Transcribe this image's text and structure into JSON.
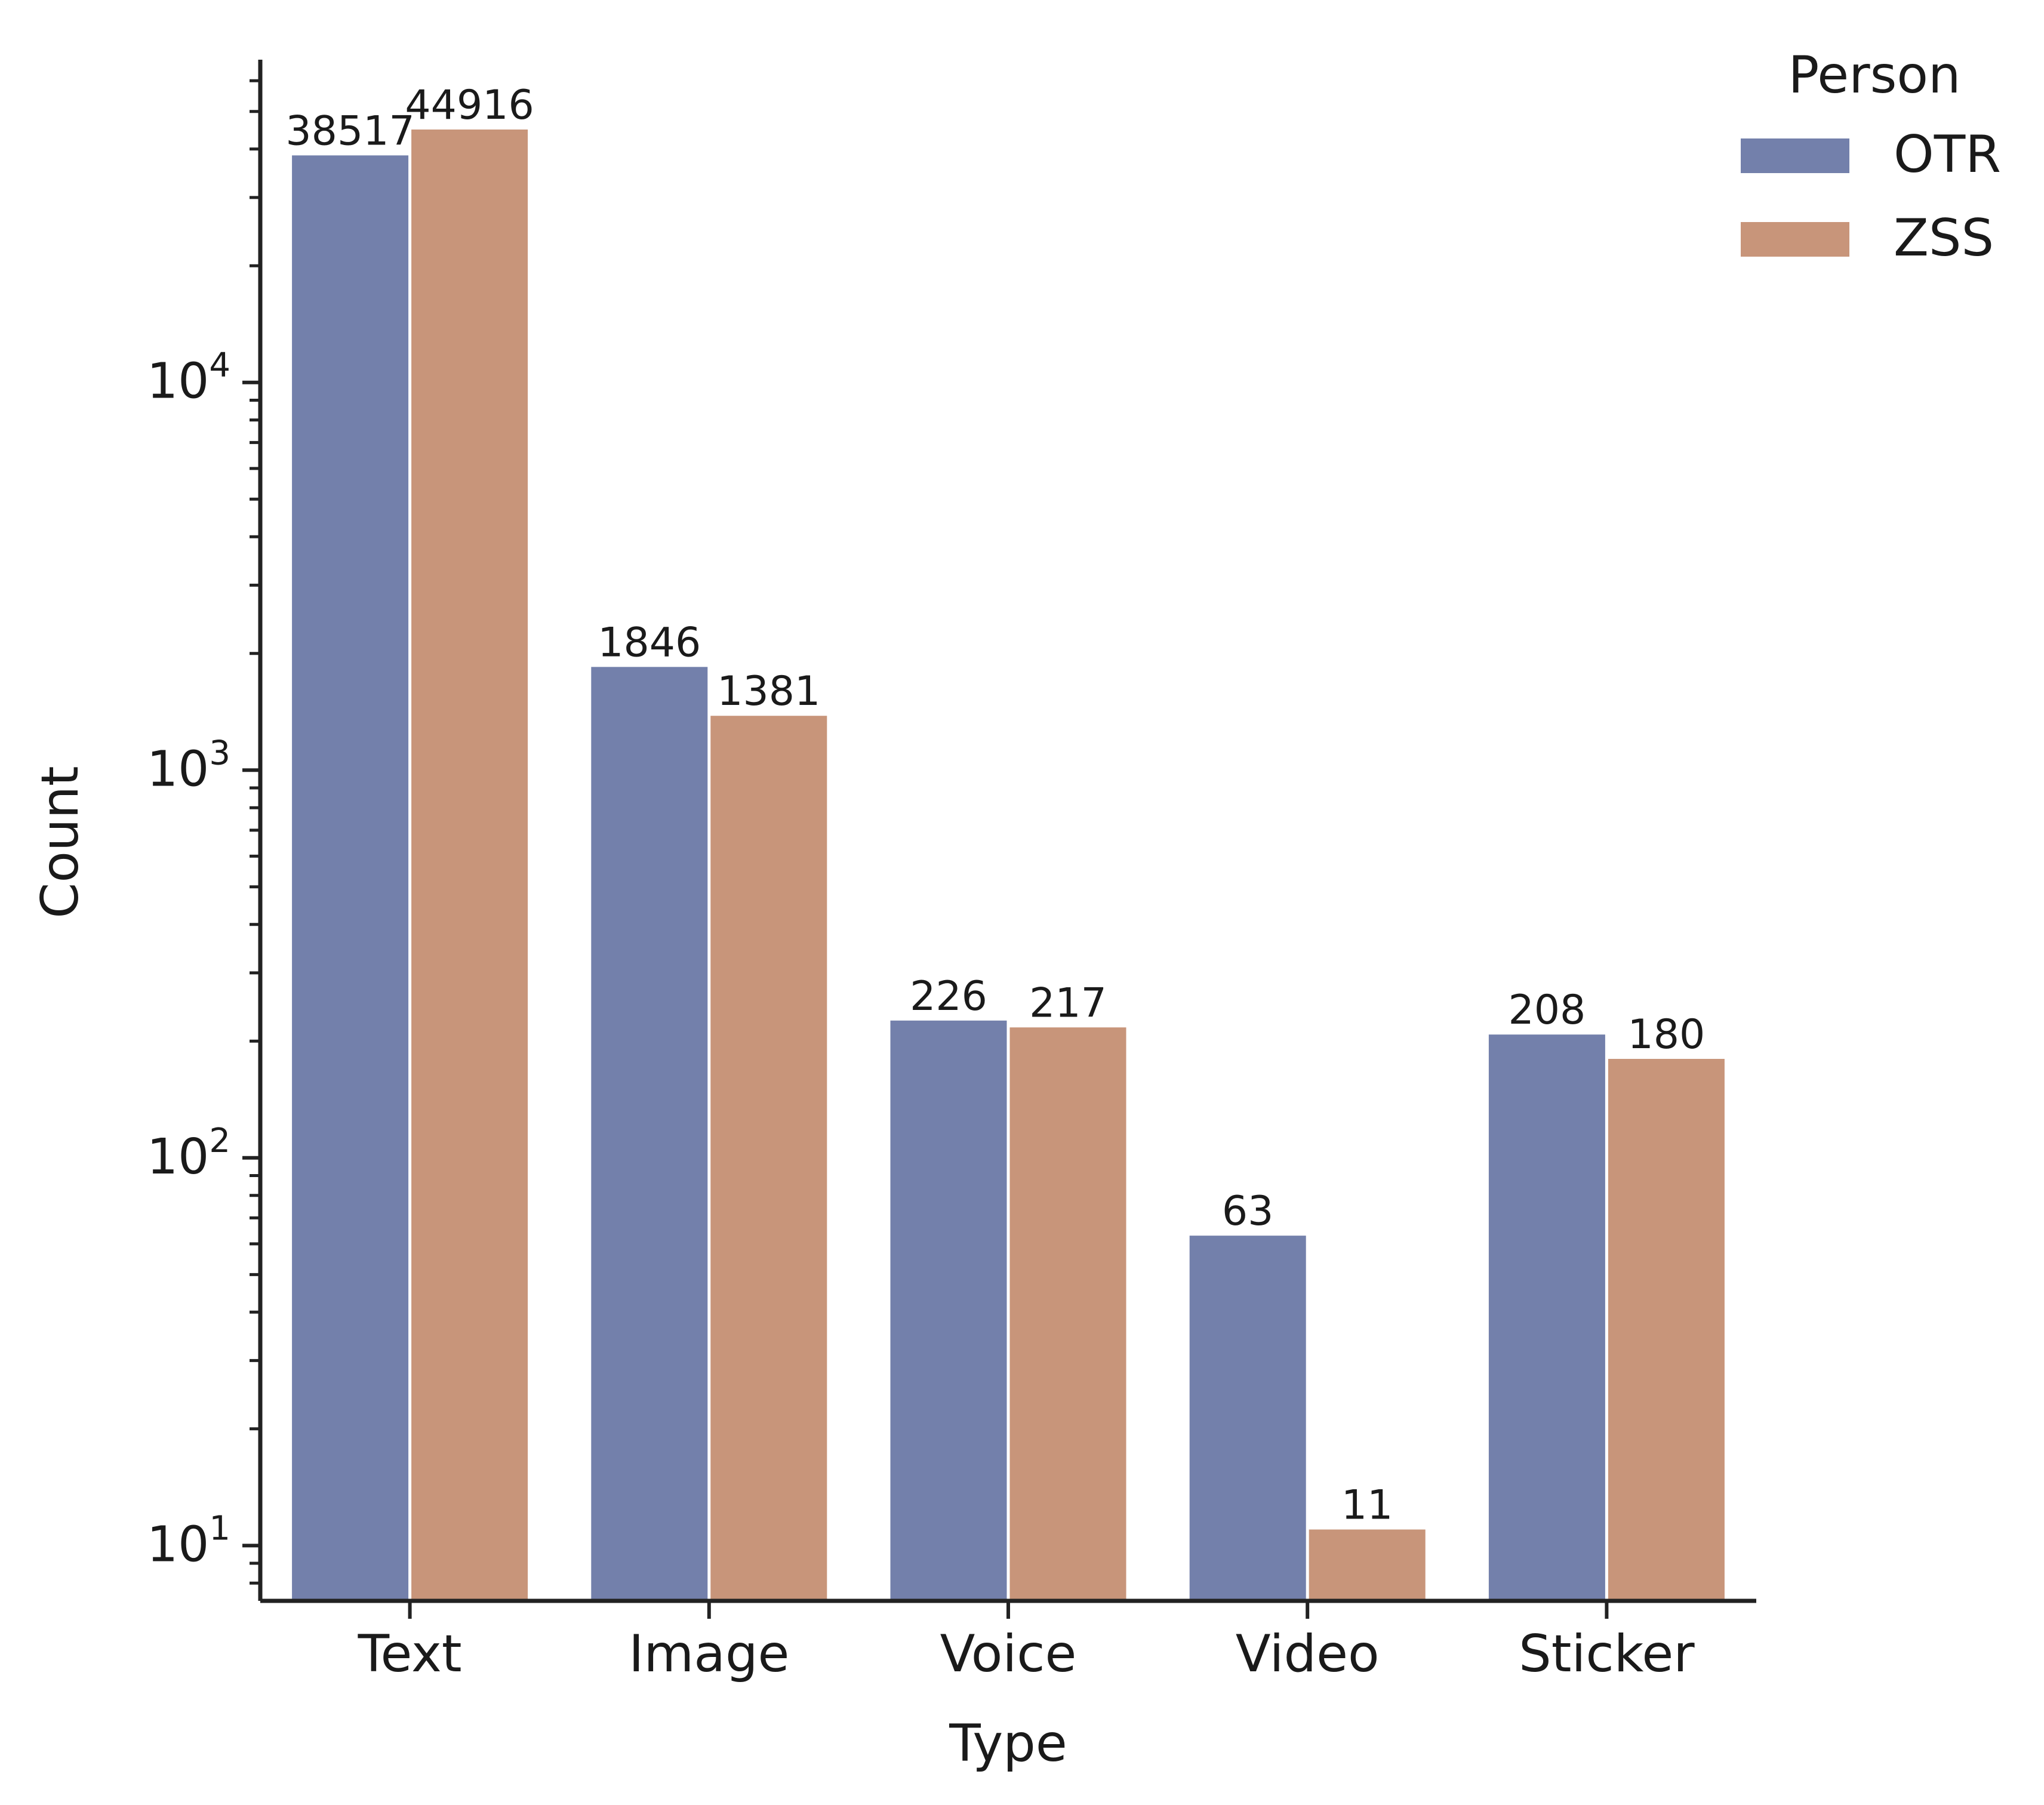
{
  "chart_data": {
    "type": "bar",
    "title": "",
    "xlabel": "Type",
    "ylabel": "Count",
    "yscale": "log",
    "ylim": [
      7.2,
      68000
    ],
    "y_ticks": [
      {
        "value": 10,
        "base": "10",
        "exp": "1"
      },
      {
        "value": 100,
        "base": "10",
        "exp": "2"
      },
      {
        "value": 1000,
        "base": "10",
        "exp": "3"
      },
      {
        "value": 10000,
        "base": "10",
        "exp": "4"
      }
    ],
    "categories": [
      "Text",
      "Image",
      "Voice",
      "Video",
      "Sticker"
    ],
    "series": [
      {
        "name": "OTR",
        "color": "#7380ab",
        "values": [
          38517,
          1846,
          226,
          63,
          208
        ],
        "labels": [
          "38517",
          "1846",
          "226",
          "63",
          "208"
        ]
      },
      {
        "name": "ZSS",
        "color": "#c8957a",
        "values": [
          44916,
          1381,
          217,
          11,
          180
        ],
        "labels": [
          "44916",
          "1381",
          "217",
          "11",
          "180"
        ]
      }
    ],
    "legend": {
      "title": "Person",
      "position": "top-right"
    },
    "grid": false
  }
}
